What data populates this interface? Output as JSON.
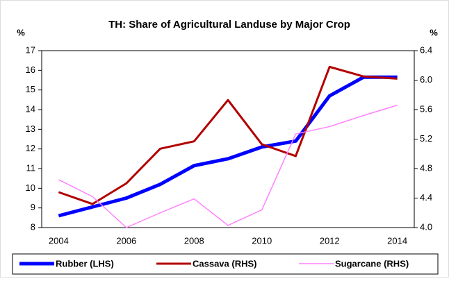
{
  "chart_data": {
    "type": "line",
    "title": "TH: Share of Agricultural Landuse by Major Crop",
    "y_label": "%",
    "y2_label": "%",
    "categories": [
      "2004",
      null,
      "2006",
      null,
      "2008",
      null,
      "2010",
      null,
      "2012",
      null,
      "2014"
    ],
    "ylim": [
      8,
      17
    ],
    "yticks": [
      8,
      9,
      10,
      11,
      12,
      13,
      14,
      15,
      16,
      17
    ],
    "y2lim": [
      4.0,
      6.4
    ],
    "y2ticks": [
      {
        "value": 4.0,
        "label": "4.0"
      },
      {
        "value": 4.4,
        "label": "4.4"
      },
      {
        "value": 4.8,
        "label": "4.8"
      },
      {
        "value": 5.2,
        "label": "5.2"
      },
      {
        "value": 5.6,
        "label": "5.6"
      },
      {
        "value": 6.0,
        "label": "6.0"
      },
      {
        "value": 6.4,
        "label": "6.4"
      }
    ],
    "legend": "bottom",
    "series": [
      {
        "name": "Rubber (LHS)",
        "color": "#0000ff",
        "width": 5,
        "values": [
          8.6,
          9.05,
          9.5,
          10.2,
          11.15,
          11.5,
          12.1,
          12.4,
          14.7,
          15.65,
          15.65
        ]
      },
      {
        "name": "Cassava (RHS)",
        "color": "#b20000",
        "width": 3,
        "axis": "y2",
        "values": [
          4.48,
          4.32,
          4.6,
          5.07,
          5.17,
          5.73,
          5.13,
          4.97,
          6.18,
          6.05,
          6.02
        ]
      },
      {
        "name": "Sugarcane (RHS)",
        "color": "#ff80ff",
        "width": 1.5,
        "axis": "y2",
        "values": [
          4.65,
          4.42,
          4.0,
          4.2,
          4.39,
          4.03,
          4.24,
          5.27,
          5.37,
          5.52,
          5.66
        ]
      }
    ]
  }
}
